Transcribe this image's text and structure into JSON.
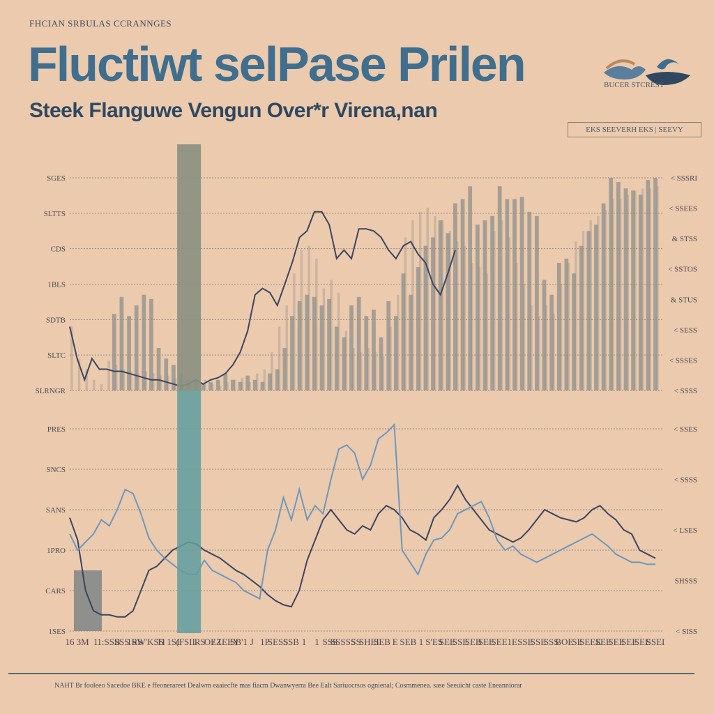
{
  "header": {
    "kicker": "FHCIAN SRBULAS CCRANNGES",
    "title": "Fluctiwt selPase Prilen",
    "subtitle": "Steek Flanguwe Vengun  Over*r Virena,nan",
    "logo_caption": "BUCER STCREST",
    "legend_label": "EKS SEEVERH EKS | SEEVY"
  },
  "footer": {
    "text": "NAHT Br fooleeo Sacedoe BKE e ffeonerareet Dealwm eaaiecfte mas fiacm Dwanwyerra Bee Ealt Sariuocrsos ognienal; Cosmmenea. sase Seeuicht caste Eneanniorar"
  },
  "colors": {
    "background": "#ebcaad",
    "title": "#3f6e8e",
    "line_dark": "#3a4560",
    "line_light": "#6d97bd",
    "bar": "#8f8f8c",
    "highlight_top": "#8a9080",
    "highlight_bottom": "#5f9ea0"
  },
  "chart_data": [
    {
      "type": "bar",
      "panel": "top",
      "title": "",
      "ytick_labels": [
        "SLRNGR",
        "SLTC",
        "SDTB",
        "1BLS",
        "CDS",
        "SLTTS",
        "SGES"
      ],
      "right_ytick_labels": [
        "< SSSRI",
        "< SSEES",
        "& STSS",
        "< SSTOS",
        "& STUS",
        "< SESS",
        "< SSSES",
        "< SSSS"
      ],
      "ylim": [
        0,
        100
      ],
      "x": [
        1,
        2,
        3,
        4,
        5,
        6,
        7,
        8,
        9,
        10,
        11,
        12,
        13,
        14,
        15,
        16,
        17,
        18,
        19,
        20,
        21,
        22,
        23,
        24,
        25,
        26,
        27,
        28,
        29,
        30,
        31,
        32,
        33,
        34,
        35,
        36,
        37,
        38,
        39,
        40,
        41,
        42,
        43,
        44,
        45,
        46,
        47,
        48,
        49,
        50,
        51,
        52,
        53,
        54,
        55,
        56,
        57,
        58,
        59,
        60,
        61,
        62,
        63,
        64,
        65,
        66,
        67,
        68,
        69,
        70,
        71,
        72,
        73,
        74,
        75,
        76,
        77,
        78,
        79,
        80
      ],
      "series": [
        {
          "values": [
            10,
            20,
            25,
            45,
            40,
            38,
            36,
            44,
            35,
            40,
            45,
            43,
            20,
            15,
            12,
            8,
            5,
            5,
            3,
            4,
            5,
            8,
            5,
            4,
            7,
            5,
            4,
            8,
            10,
            20,
            35,
            42,
            45,
            44,
            40,
            43,
            30,
            25,
            40,
            44,
            35,
            38,
            25,
            42,
            35,
            55,
            45,
            58,
            68,
            72,
            80,
            74,
            88,
            90,
            96,
            78,
            80,
            82,
            96,
            90,
            90,
            91,
            84,
            82,
            52,
            45,
            60,
            62,
            55,
            68,
            75,
            78,
            88,
            100,
            98,
            95,
            94,
            92,
            99,
            100
          ]
        },
        {
          "values": [
            30,
            15,
            10,
            5,
            3,
            14,
            12,
            10,
            9,
            8,
            9,
            8,
            7,
            7,
            6,
            5,
            4,
            3,
            5,
            3,
            2,
            4,
            5,
            6,
            4,
            8,
            10,
            18,
            30,
            40,
            55,
            66,
            68,
            62,
            48,
            52,
            46,
            28,
            20,
            18,
            20,
            18,
            16,
            30,
            45,
            72,
            80,
            84,
            86,
            82,
            80,
            75,
            70,
            68,
            60,
            58,
            55,
            75,
            80,
            72,
            60,
            50,
            40,
            35,
            40,
            36,
            50,
            60,
            70,
            75,
            80,
            82,
            85,
            90,
            90,
            92,
            94,
            95,
            95,
            96
          ]
        }
      ],
      "lines": [
        {
          "values": [
            30,
            15,
            5,
            15,
            10,
            10,
            9,
            9,
            8,
            7,
            6,
            5,
            5,
            4,
            3,
            2,
            3,
            5,
            3,
            5,
            6,
            8,
            12,
            18,
            28,
            45,
            48,
            46,
            40,
            50,
            60,
            72,
            75,
            84,
            84,
            78,
            62,
            66,
            62,
            76,
            76,
            75,
            72,
            66,
            62,
            68,
            70,
            64,
            60,
            50,
            45,
            55,
            66
          ]
        }
      ],
      "highlight_band": {
        "x": 17
      }
    },
    {
      "type": "line",
      "panel": "bottom",
      "title": "",
      "ytick_labels": [
        "1SES",
        "CARS",
        "1PRO",
        "SANS",
        "SNCS",
        "PRES"
      ],
      "right_ytick_labels": [
        "< SSES",
        "< SSSS",
        "< LSES",
        "SHSSS",
        "< SISS"
      ],
      "xtick_labels": [
        "16",
        "3M",
        "1",
        "1:SSB",
        "SSS",
        "1RS",
        "SW'KSS",
        "TI",
        "1S1",
        "(FSIL",
        "RS",
        "OEZ",
        "/ 1EEY",
        "SB'1",
        "J",
        "1P",
        "SESS",
        "SSB",
        "1",
        "1",
        "SSS",
        "SSSSS",
        "SS",
        "SHEI",
        "SEB",
        "E",
        "SEB",
        "1",
        "S'ES",
        "SEE",
        "SSE",
        "SEB",
        "SEE",
        "SEE",
        "1E",
        "SSE",
        "SSE",
        "SSS",
        "BOE",
        "SE",
        "SEEE",
        "SEE",
        "SEE",
        "SEE",
        "SEE",
        "SSEI"
      ],
      "ylim": [
        0,
        100
      ],
      "x": [
        1,
        2,
        3,
        4,
        5,
        6,
        7,
        8,
        9,
        10,
        11,
        12,
        13,
        14,
        15,
        16,
        17,
        18,
        19,
        20,
        21,
        22,
        23,
        24,
        25,
        26,
        27,
        28,
        29,
        30,
        31,
        32,
        33,
        34,
        35,
        36,
        37,
        38,
        39,
        40,
        41,
        42,
        43,
        44,
        45,
        46,
        47,
        48,
        49,
        50,
        51,
        52,
        53,
        54,
        55,
        56,
        57,
        58,
        59,
        60,
        61,
        62,
        63,
        64,
        65,
        66,
        67,
        68,
        69,
        70,
        71,
        72,
        73,
        74,
        75
      ],
      "bars": [
        {
          "x": 1,
          "value": 30
        }
      ],
      "series": [
        {
          "values": [
            56,
            45,
            20,
            10,
            8,
            8,
            7,
            7,
            10,
            20,
            30,
            32,
            36,
            40,
            42,
            44,
            43,
            40,
            38,
            36,
            33,
            30,
            28,
            25,
            22,
            18,
            15,
            13,
            12,
            20,
            35,
            45,
            55,
            60,
            55,
            50,
            48,
            52,
            50,
            58,
            62,
            60,
            56,
            50,
            48,
            45,
            56,
            60,
            65,
            72,
            65,
            60,
            55,
            50,
            48,
            46,
            44,
            46,
            50,
            55,
            60,
            58,
            56,
            55,
            54,
            56,
            60,
            62,
            58,
            55,
            50,
            48,
            40,
            38,
            36
          ]
        },
        {
          "values": [
            48,
            40,
            44,
            48,
            55,
            52,
            60,
            70,
            68,
            58,
            46,
            40,
            36,
            33,
            30,
            28,
            28,
            35,
            30,
            28,
            26,
            24,
            20,
            18,
            16,
            40,
            50,
            66,
            55,
            70,
            55,
            62,
            58,
            75,
            90,
            92,
            88,
            75,
            82,
            95,
            98,
            102,
            40,
            34,
            28,
            38,
            45,
            46,
            50,
            58,
            60,
            62,
            64,
            56,
            45,
            40,
            42,
            38,
            36,
            34,
            36,
            38,
            40,
            42,
            44,
            46,
            48,
            45,
            42,
            38,
            36,
            34,
            34,
            33,
            33
          ]
        }
      ],
      "highlight_band": {
        "x": 17
      }
    }
  ]
}
